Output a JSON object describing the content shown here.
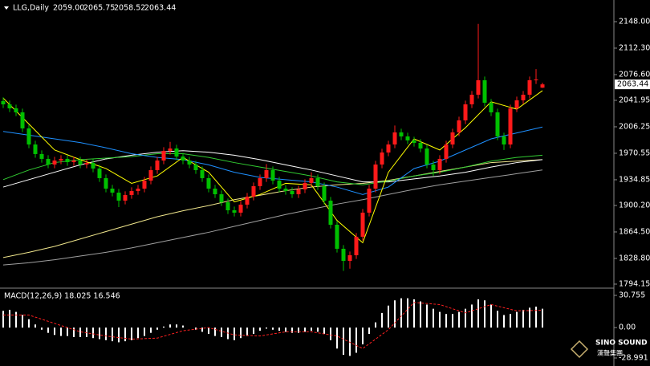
{
  "chart_data": {
    "type": "candlestick",
    "symbol": "LLG,Daily",
    "header_ohlc": [
      "2059.00",
      "2065.75",
      "2058.52",
      "2063.44"
    ],
    "up_color": "#ff1a1a",
    "down_color": "#00c000",
    "ylim": [
      1789.8,
      2177.2
    ],
    "yticks": [
      {
        "value": 2148,
        "label": "2148.00"
      },
      {
        "value": 2112.3,
        "label": "2112.30"
      },
      {
        "value": 2076.6,
        "label": "2076.60"
      },
      2041.95,
      2006.25,
      1970.55,
      1934.85,
      {
        "value": 1900.2,
        "label": "1900.20"
      },
      {
        "value": 1864.5,
        "label": "1864.50"
      },
      {
        "value": 1828.8,
        "label": "1828.80"
      },
      1794.15
    ],
    "current_price": "2063.44",
    "ohlc": [
      [
        2041,
        2046,
        2031.5,
        2036.5
      ],
      [
        2036.5,
        2041.5,
        2026.1,
        2031.1
      ],
      [
        2031.1,
        2036.1,
        2020.7,
        2025.7
      ],
      [
        2025.7,
        2030.7,
        1999.1,
        2004.1
      ],
      [
        2004.1,
        2009.1,
        1977.4,
        1982.4
      ],
      [
        1982.4,
        1987.4,
        1964.5,
        1969.5
      ],
      [
        1969.5,
        1974.5,
        1958,
        1963
      ],
      [
        1963,
        1968,
        1950.4,
        1955.4
      ],
      [
        1955.4,
        1965.8,
        1950.4,
        1960.8
      ],
      [
        1960.8,
        1968,
        1955.8,
        1963
      ],
      [
        1963,
        1968,
        1953.6,
        1958.6
      ],
      [
        1958.6,
        1965.8,
        1953.6,
        1960.8
      ],
      [
        1960.8,
        1965.8,
        1950.4,
        1955.4
      ],
      [
        1955.4,
        1962.6,
        1950.4,
        1957.6
      ],
      [
        1957.6,
        1962.6,
        1945,
        1950
      ],
      [
        1950,
        1955,
        1932,
        1937
      ],
      [
        1937,
        1942,
        1917.9,
        1922.9
      ],
      [
        1922.9,
        1927.9,
        1912.5,
        1917.5
      ],
      [
        1917.5,
        1922.5,
        1898,
        1906.7
      ],
      [
        1906.7,
        1919.3,
        1901.7,
        1914.3
      ],
      [
        1914.3,
        1924.7,
        1909.3,
        1919.7
      ],
      [
        1919.7,
        1927.9,
        1914.7,
        1922.9
      ],
      [
        1922.9,
        1938.7,
        1917.9,
        1933.7
      ],
      [
        1933.7,
        1952.8,
        1928.7,
        1947.8
      ],
      [
        1947.8,
        1965.8,
        1942.8,
        1960.8
      ],
      [
        1960.8,
        1978.8,
        1955.8,
        1973.8
      ],
      [
        1973.8,
        1986,
        1968.8,
        1977
      ],
      [
        1977,
        1982,
        1961.2,
        1966.2
      ],
      [
        1966.2,
        1971.2,
        1955.8,
        1960.8
      ],
      [
        1960.8,
        1965.8,
        1950.4,
        1955.4
      ],
      [
        1955.4,
        1960.4,
        1942.8,
        1947.8
      ],
      [
        1947.8,
        1952.8,
        1932,
        1937
      ],
      [
        1937,
        1942,
        1917.9,
        1922.9
      ],
      [
        1922.9,
        1927.9,
        1910.3,
        1915.3
      ],
      [
        1915.3,
        1920.3,
        1899.5,
        1904.5
      ],
      [
        1904.5,
        1909.5,
        1888.7,
        1893.7
      ],
      [
        1893.7,
        1898.7,
        1885.5,
        1890.5
      ],
      [
        1890.5,
        1906.3,
        1885.5,
        1901.3
      ],
      [
        1901.3,
        1917.1,
        1896.3,
        1912.1
      ],
      [
        1912.1,
        1931.2,
        1907.1,
        1926.2
      ],
      [
        1926.2,
        1942,
        1921.2,
        1937
      ],
      [
        1937,
        1956,
        1932,
        1947.8
      ],
      [
        1947.8,
        1952.8,
        1928.7,
        1933.7
      ],
      [
        1933.7,
        1938.7,
        1917.9,
        1922.9
      ],
      [
        1922.9,
        1927.9,
        1914.7,
        1919.7
      ],
      [
        1919.7,
        1924.7,
        1910.3,
        1915.3
      ],
      [
        1915.3,
        1926.8,
        1910.3,
        1921.8
      ],
      [
        1921.8,
        1935.5,
        1916.8,
        1930.5
      ],
      [
        1930.5,
        1945,
        1925.5,
        1937
      ],
      [
        1937,
        1942,
        1921.2,
        1926.2
      ],
      [
        1926.2,
        1931.2,
        1901.7,
        1906.7
      ],
      [
        1906.7,
        1911.7,
        1869.2,
        1874.2
      ],
      [
        1874.2,
        1879.2,
        1836.8,
        1841.8
      ],
      [
        1841.8,
        1846.8,
        1812,
        1825.5
      ],
      [
        1825.5,
        1838.1,
        1815,
        1833.1
      ],
      [
        1833.1,
        1863,
        1828.1,
        1858
      ],
      [
        1858,
        1895.5,
        1853,
        1890.5
      ],
      [
        1890.5,
        1927.9,
        1885.5,
        1922.9
      ],
      [
        1922.9,
        1960.4,
        1917.9,
        1955.4
      ],
      [
        1955.4,
        1976.6,
        1950.4,
        1971.6
      ],
      [
        1971.6,
        1987.4,
        1966.6,
        1982.4
      ],
      [
        1982.4,
        2008,
        1977.4,
        1998.7
      ],
      [
        1998.7,
        2003.7,
        1988.3,
        1993.3
      ],
      [
        1993.3,
        1998.3,
        1982.9,
        1987.9
      ],
      [
        1987.9,
        1992.9,
        1979.6,
        1984.6
      ],
      [
        1984.6,
        1989.6,
        1972,
        1977
      ],
      [
        1977,
        1982,
        1950.4,
        1955.4
      ],
      [
        1955.4,
        1960.4,
        1940,
        1947.8
      ],
      [
        1947.8,
        1968,
        1942.8,
        1963
      ],
      [
        1963,
        1987.4,
        1958,
        1982.4
      ],
      [
        1982.4,
        2003.7,
        1977.4,
        1998.7
      ],
      [
        1998.7,
        2019.9,
        1993.7,
        2014.9
      ],
      [
        2014.9,
        2041.5,
        2009.9,
        2036.5
      ],
      [
        2036.5,
        2054.5,
        2031.5,
        2049.5
      ],
      [
        2049.5,
        2145,
        2044.5,
        2069
      ],
      [
        2069,
        2074,
        2033.7,
        2038.7
      ],
      [
        2038.7,
        2043.7,
        2020.7,
        2025.7
      ],
      [
        2025.7,
        2030.7,
        1988.3,
        1993.3
      ],
      [
        1993.3,
        1998.3,
        1975,
        1982.4
      ],
      [
        1982.4,
        2036.1,
        1977.4,
        2031.1
      ],
      [
        2031.1,
        2046.9,
        2026.1,
        2041.9
      ],
      [
        2041.9,
        2054.5,
        2036.9,
        2049.5
      ],
      [
        2049.5,
        2074,
        2044.5,
        2069
      ],
      [
        2069,
        2084,
        2064,
        2070
      ],
      [
        2059,
        2065.75,
        2058.52,
        2063.44
      ]
    ],
    "moving_averages": [
      {
        "color": "#a0a0a0",
        "values": [
          1820,
          1823,
          1827,
          1832,
          1837,
          1843,
          1850,
          1857,
          1864,
          1872,
          1880,
          1888,
          1895,
          1902,
          1908,
          1915,
          1922,
          1928,
          1933,
          1938,
          1943,
          1948
        ]
      },
      {
        "color": "#f0e68c",
        "values": [
          1830,
          1837,
          1845,
          1855,
          1865,
          1875,
          1885,
          1893,
          1900,
          1908,
          1914,
          1920,
          1925,
          1928,
          1930,
          1934,
          1940,
          1946,
          1952,
          1958,
          1960,
          1962
        ]
      },
      {
        "color": "#ffffff",
        "values": [
          1925,
          1935,
          1945,
          1955,
          1963,
          1968,
          1972,
          1974,
          1972,
          1968,
          1962,
          1955,
          1948,
          1940,
          1932,
          1932,
          1936,
          1940,
          1945,
          1952,
          1958,
          1962
        ]
      },
      {
        "color": "#32cd32",
        "values": [
          1935,
          1948,
          1958,
          1962,
          1964,
          1966,
          1970,
          1970,
          1965,
          1958,
          1952,
          1946,
          1940,
          1932,
          1928,
          1933,
          1940,
          1945,
          1952,
          1960,
          1965,
          1968
        ]
      },
      {
        "color": "#1e90ff",
        "values": [
          2000,
          1995,
          1990,
          1985,
          1978,
          1970,
          1965,
          1962,
          1955,
          1945,
          1938,
          1935,
          1932,
          1925,
          1915,
          1925,
          1950,
          1960,
          1975,
          1990,
          1998,
          2006
        ]
      },
      {
        "color": "#ffff00",
        "values": [
          2045,
          2010,
          1975,
          1962,
          1950,
          1930,
          1940,
          1965,
          1945,
          1905,
          1915,
          1930,
          1928,
          1880,
          1850,
          1945,
          1990,
          1975,
          2005,
          2040,
          2030,
          2055
        ]
      }
    ],
    "macd": {
      "label": "MACD(12,26,9) 18.025 16.546",
      "ylim": [
        -36.65,
        36.9
      ],
      "yticks": [
        30.755,
        {
          "value": 0,
          "label": "0.00"
        },
        -28.991
      ],
      "histogram_color": "#ffffff",
      "signal_color": "#ff2020",
      "histogram": [
        16,
        17,
        15,
        12,
        8,
        3,
        -2,
        -5,
        -7,
        -8,
        -8,
        -9,
        -9,
        -9,
        -10,
        -11,
        -12,
        -13,
        -14,
        -13,
        -12,
        -10,
        -8,
        -5,
        -2,
        1,
        3,
        3,
        2,
        0,
        -2,
        -4,
        -6,
        -8,
        -9,
        -11,
        -12,
        -10,
        -8,
        -6,
        -3,
        -1,
        -2,
        -3,
        -4,
        -5,
        -5,
        -4,
        -3,
        -4,
        -6,
        -12,
        -20,
        -26,
        -27,
        -24,
        -16,
        -6,
        5,
        14,
        21,
        26,
        28,
        28,
        27,
        25,
        22,
        18,
        15,
        13,
        13,
        15,
        18,
        22,
        27,
        26,
        22,
        16,
        12,
        13,
        15,
        17,
        19,
        20,
        18.025
      ],
      "signal": [
        12,
        12,
        4,
        -4,
        -8,
        -11,
        -10,
        -3,
        0,
        -7,
        -8,
        -4,
        -4,
        -8,
        -20,
        -2,
        24,
        22,
        14,
        22,
        16,
        16.546
      ]
    },
    "logo": {
      "name": "SINO SOUND",
      "chinese": "漢聲集團"
    }
  }
}
